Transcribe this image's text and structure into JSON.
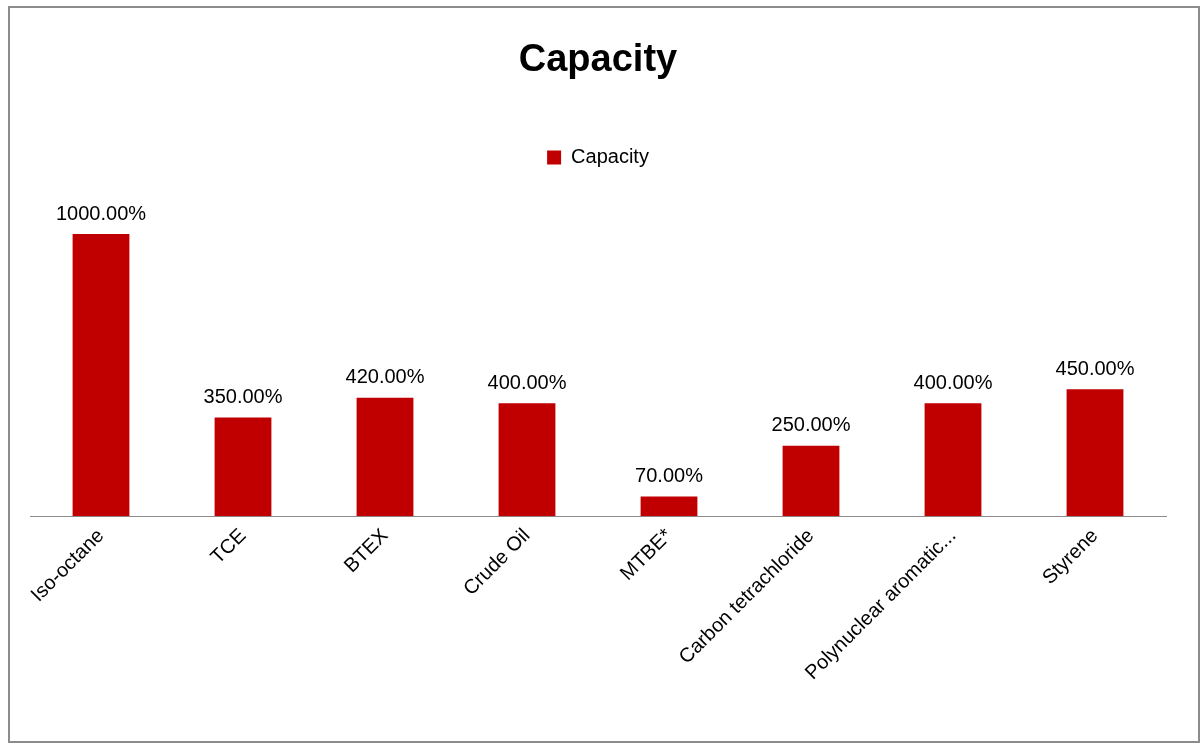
{
  "chart_data": {
    "type": "bar",
    "title": "Capacity",
    "categories": [
      "Iso-octane",
      "TCE",
      "BTEX",
      "Crude Oil",
      "MTBE*",
      "Carbon tetrachloride",
      "Polynuclear aromatic...",
      "Styrene"
    ],
    "series": [
      {
        "name": "Capacity",
        "color": "#c00000",
        "values": [
          1000,
          350,
          420,
          400,
          70,
          250,
          400,
          450
        ],
        "value_labels": [
          "1000.00%",
          "350.00%",
          "420.00%",
          "400.00%",
          "70.00%",
          "250.00%",
          "400.00%",
          "450.00%"
        ]
      }
    ],
    "tick_labels": "x",
    "legend": "top",
    "grid": false
  }
}
